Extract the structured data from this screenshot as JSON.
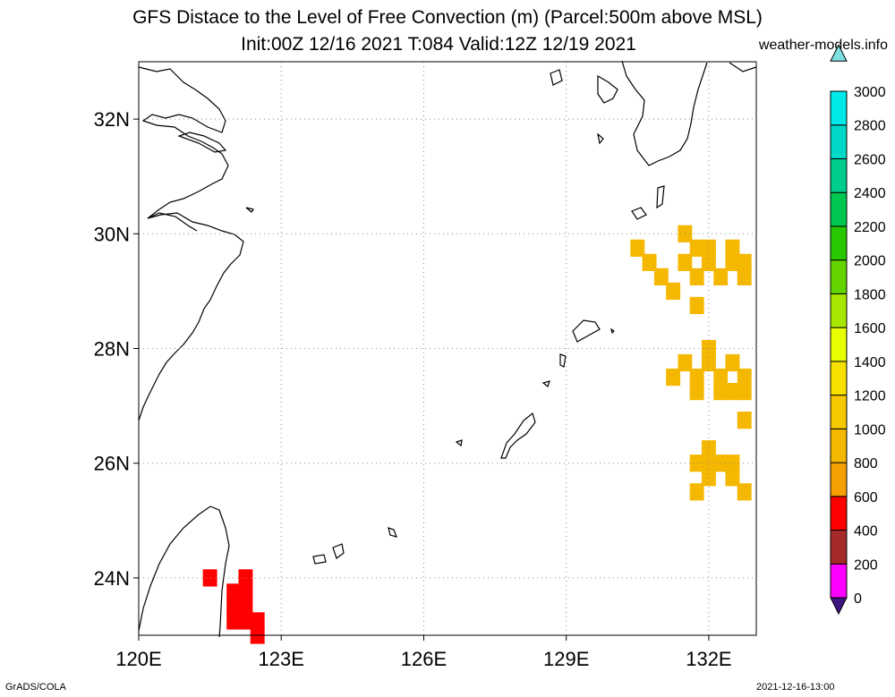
{
  "header": {
    "title": "GFS Distace to the Level of Free Convection (m) (Parcel:500m above MSL)",
    "subtitle": "Init:00Z 12/16 2021 T:084 Valid:12Z 12/19 2021",
    "credit": "weather-models.info"
  },
  "footer": {
    "software": "GrADS/COLA",
    "timestamp": "2021-12-16-13:00"
  },
  "map": {
    "lon_range": [
      120,
      133
    ],
    "lat_range": [
      23,
      33
    ],
    "lon_ticks": [
      "120E",
      "123E",
      "126E",
      "129E",
      "132E"
    ],
    "lat_ticks": [
      "24N",
      "26N",
      "28N",
      "30N",
      "32N"
    ],
    "grid": "dotted",
    "field_patches": [
      {
        "color": "#f5b800",
        "cells": [
          [
            130.5,
            29.75
          ],
          [
            130.75,
            29.5
          ],
          [
            131,
            29.25
          ],
          [
            131.25,
            29
          ],
          [
            131.5,
            29.5
          ],
          [
            131.75,
            29.25
          ],
          [
            132,
            29.5
          ],
          [
            132.25,
            29.25
          ],
          [
            132.5,
            29.5
          ],
          [
            132.75,
            29.25
          ],
          [
            131.5,
            30.0
          ],
          [
            131.75,
            29.75
          ],
          [
            132,
            29.75
          ],
          [
            132.5,
            29.75
          ],
          [
            132.75,
            29.5
          ],
          [
            131.75,
            28.75
          ]
        ]
      },
      {
        "color": "#f5b800",
        "cells": [
          [
            131.5,
            27.75
          ],
          [
            131.75,
            27.5
          ],
          [
            132,
            27.75
          ],
          [
            132.25,
            27.5
          ],
          [
            132.5,
            27.75
          ],
          [
            132.75,
            27.5
          ],
          [
            132,
            28.0
          ],
          [
            132.25,
            27.25
          ],
          [
            132.5,
            27.25
          ],
          [
            132.75,
            27.25
          ],
          [
            131.75,
            27.25
          ],
          [
            131.25,
            27.5
          ]
        ]
      },
      {
        "color": "#f5b800",
        "cells": [
          [
            131.75,
            26.0
          ],
          [
            132,
            26.25
          ],
          [
            132.25,
            26.0
          ],
          [
            132.5,
            25.75
          ],
          [
            131.75,
            25.5
          ],
          [
            132,
            25.75
          ],
          [
            132.75,
            25.5
          ],
          [
            132.75,
            26.75
          ],
          [
            132,
            26.0
          ],
          [
            132.5,
            26.0
          ]
        ]
      },
      {
        "color": "#ff0000",
        "cells": [
          [
            122,
            23.75
          ],
          [
            122.25,
            23.75
          ],
          [
            122,
            23.5
          ],
          [
            122.25,
            23.5
          ],
          [
            122,
            23.25
          ],
          [
            122.25,
            23.25
          ],
          [
            122.5,
            23.25
          ],
          [
            122.25,
            24.0
          ],
          [
            121.5,
            24.0
          ],
          [
            122.5,
            23.0
          ]
        ]
      }
    ]
  },
  "colorbar": {
    "levels": [
      "0",
      "200",
      "400",
      "600",
      "800",
      "1000",
      "1200",
      "1400",
      "1600",
      "1800",
      "2000",
      "2200",
      "2400",
      "2600",
      "2800",
      "3000"
    ],
    "colors": [
      "#3d1580",
      "#ff00ff",
      "#a52a2a",
      "#ff0000",
      "#f5a000",
      "#f5b800",
      "#f5c800",
      "#f5e000",
      "#e8ff00",
      "#a8e800",
      "#64d400",
      "#28c800",
      "#00c850",
      "#00cc8c",
      "#00d8c8",
      "#00e8e8"
    ],
    "low_arrow_color": "#3d1580",
    "high_arrow_color": "#7fe0e0"
  }
}
